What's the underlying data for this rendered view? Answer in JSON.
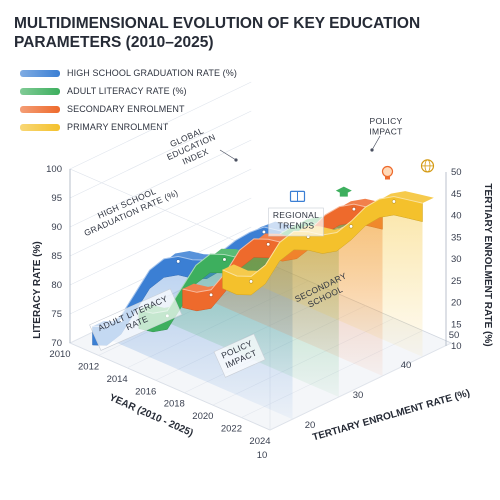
{
  "chart_data": {
    "type": "area",
    "title": "MULTIDIMENSIONAL EVOLUTION OF KEY EDUCATION PARAMETERS (2010–2025)",
    "xlabel": "YEAR (2010 - 2025)",
    "ylabel_left": "LITERACY RATE (%)",
    "ylabel_right": "TERTIARY ENROLMENT RATE (%)",
    "zlabel": "TERTIARY ENROLMENT RATE (%)",
    "x": [
      2010,
      2011,
      2012,
      2013,
      2014,
      2015,
      2016,
      2017,
      2018,
      2019,
      2020,
      2021,
      2022,
      2023,
      2024
    ],
    "x_ticks": [
      "2010",
      "2012",
      "2014",
      "2016",
      "2018",
      "2020",
      "2022",
      "2024"
    ],
    "y_left_ticks": [
      "70",
      "75",
      "80",
      "85",
      "90",
      "95",
      "100"
    ],
    "y_left_range": [
      70,
      100
    ],
    "y_right_ticks": [
      "10",
      "15",
      "20",
      "25",
      "30",
      "35",
      "40",
      "45",
      "50"
    ],
    "y_right_range": [
      10,
      50
    ],
    "z_ticks": [
      "10",
      "20",
      "30",
      "40",
      "50"
    ],
    "legend_position": "top-left",
    "grid": true,
    "series": [
      {
        "name": "HIGH SCHOOL GRADUATION RATE (%)",
        "color": "#3b7fd4",
        "icon": "book-icon",
        "values": [
          71,
          72,
          75,
          80,
          85,
          88,
          89.5,
          90,
          91,
          93.5,
          96.5,
          99,
          101,
          101.5,
          102
        ]
      },
      {
        "name": "ADULT LITERACY RATE (%)",
        "color": "#3daf5e",
        "icon": "graduation-cap-icon",
        "values": [
          70,
          70.5,
          72,
          77,
          82,
          85,
          86,
          86.5,
          88,
          91,
          94,
          96.5,
          98,
          98.5,
          99
        ]
      },
      {
        "name": "SECONDARY ENROLMENT",
        "color": "#ee6a2c",
        "icon": "lightbulb-icon",
        "values": [
          70,
          70.5,
          72,
          76,
          81,
          84,
          85,
          85.5,
          87,
          90,
          93.5,
          96,
          97.5,
          98,
          98.5
        ]
      },
      {
        "name": "PRIMARY ENROLMENT",
        "color": "#f4c12c",
        "icon": "globe-icon",
        "values": [
          70,
          70,
          71,
          74,
          79,
          82,
          83,
          83.5,
          85,
          88,
          91.5,
          94,
          95.5,
          96,
          96.5
        ]
      }
    ],
    "annotations": [
      {
        "text": "GLOBAL EDUCATION INDEX"
      },
      {
        "text": "HIGH SCHOOL GRADUATION RATE (%)"
      },
      {
        "text": "REGIONAL TRENDS"
      },
      {
        "text": "ADULT LITERACY RATE"
      },
      {
        "text": "POLICY IMPACT"
      },
      {
        "text": "SECONDARY SCHOOL"
      },
      {
        "text": "POLICY IMPACT"
      }
    ]
  }
}
